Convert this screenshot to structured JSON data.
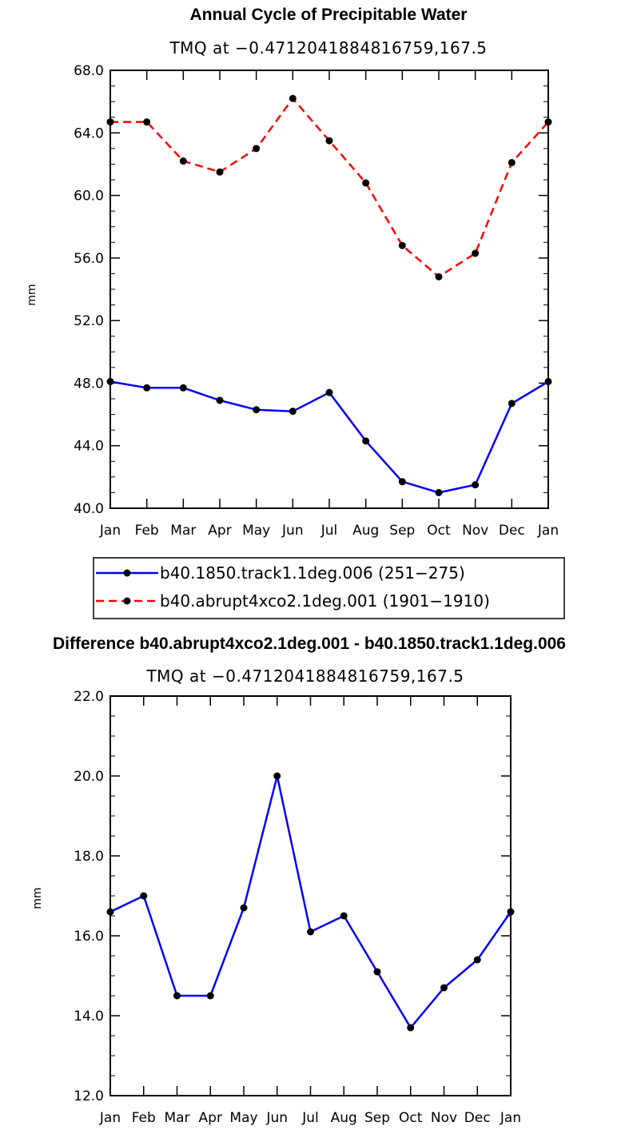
{
  "chart_data": [
    {
      "type": "line",
      "title": "Annual Cycle of Precipitable Water",
      "subtitle": "TMQ at −0.4712041884816759,167.5",
      "xlabel": "",
      "ylabel": "mm",
      "ylim": [
        40.0,
        68.0
      ],
      "yticks": [
        "40.0",
        "44.0",
        "48.0",
        "52.0",
        "56.0",
        "60.0",
        "64.0",
        "68.0"
      ],
      "categories": [
        "Jan",
        "Feb",
        "Mar",
        "Apr",
        "May",
        "Jun",
        "Jul",
        "Aug",
        "Sep",
        "Oct",
        "Nov",
        "Dec",
        "Jan"
      ],
      "legend_position": "bottom",
      "series": [
        {
          "name": "b40.1850.track1.1deg.006 (251−275)",
          "color": "#0000ff",
          "style": "solid",
          "values": [
            48.1,
            47.7,
            47.7,
            46.9,
            46.3,
            46.2,
            47.4,
            44.3,
            41.7,
            41.0,
            41.5,
            46.7,
            48.1
          ]
        },
        {
          "name": "b40.abrupt4xco2.1deg.001 (1901−1910)",
          "color": "#ff0000",
          "style": "dashed",
          "values": [
            64.7,
            64.7,
            62.2,
            61.5,
            63.0,
            66.2,
            63.5,
            60.8,
            56.8,
            54.8,
            56.3,
            62.1,
            64.7
          ]
        }
      ]
    },
    {
      "type": "line",
      "title": "Difference b40.abrupt4xco2.1deg.001 - b40.1850.track1.1deg.006",
      "subtitle": "TMQ at −0.4712041884816759,167.5",
      "xlabel": "",
      "ylabel": "mm",
      "ylim": [
        12.0,
        22.0
      ],
      "yticks": [
        "12.0",
        "14.0",
        "16.0",
        "18.0",
        "20.0",
        "22.0"
      ],
      "categories": [
        "Jan",
        "Feb",
        "Mar",
        "Apr",
        "May",
        "Jun",
        "Jul",
        "Aug",
        "Sep",
        "Oct",
        "Nov",
        "Dec",
        "Jan"
      ],
      "series": [
        {
          "name": "difference",
          "color": "#0000ff",
          "style": "solid",
          "values": [
            16.6,
            17.0,
            14.5,
            14.5,
            16.7,
            20.0,
            16.1,
            16.5,
            15.1,
            13.7,
            14.7,
            15.4,
            16.6
          ]
        }
      ]
    }
  ]
}
